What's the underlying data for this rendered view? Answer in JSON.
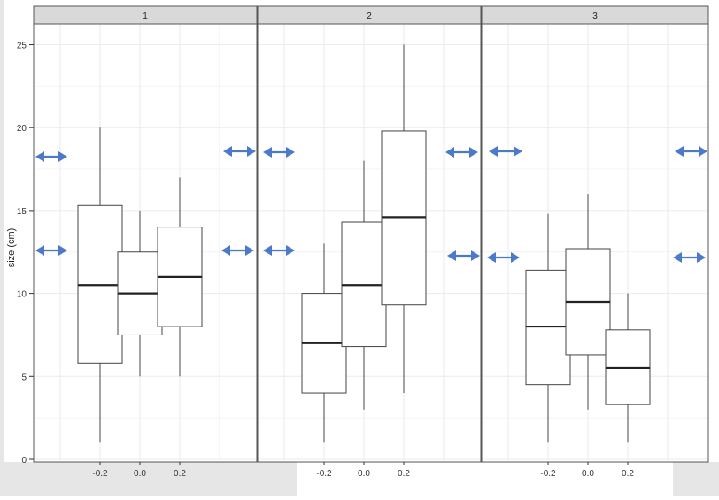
{
  "chart_data": {
    "type": "boxplot",
    "ylabel": "size (cm)",
    "ylim": [
      0,
      26
    ],
    "yticks": [
      0,
      5,
      10,
      15,
      20,
      25
    ],
    "xticks": [
      "-0.2",
      "0.0",
      "0.2"
    ],
    "xtick_values": [
      -0.2,
      0.0,
      0.2
    ],
    "grid": true,
    "facets": [
      {
        "label": "1",
        "boxes": [
          {
            "x": -0.2,
            "min": 1,
            "q1": 5.8,
            "median": 10.5,
            "q3": 15.3,
            "max": 20
          },
          {
            "x": 0.0,
            "min": 5,
            "q1": 7.5,
            "median": 10,
            "q3": 12.5,
            "max": 15
          },
          {
            "x": 0.2,
            "min": 5,
            "q1": 8,
            "median": 11,
            "q3": 14,
            "max": 17
          }
        ]
      },
      {
        "label": "2",
        "boxes": [
          {
            "x": -0.2,
            "min": 1,
            "q1": 4,
            "median": 7,
            "q3": 10,
            "max": 13
          },
          {
            "x": 0.0,
            "min": 3,
            "q1": 6.8,
            "median": 10.5,
            "q3": 14.3,
            "max": 18
          },
          {
            "x": 0.2,
            "min": 4,
            "q1": 9.3,
            "median": 14.6,
            "q3": 19.8,
            "max": 25
          }
        ]
      },
      {
        "label": "3",
        "boxes": [
          {
            "x": -0.2,
            "min": 1,
            "q1": 4.5,
            "median": 8,
            "q3": 11.4,
            "max": 14.8
          },
          {
            "x": 0.0,
            "min": 3,
            "q1": 6.3,
            "median": 9.5,
            "q3": 12.7,
            "max": 16
          },
          {
            "x": 0.2,
            "min": 1,
            "q1": 3.3,
            "median": 5.5,
            "q3": 7.8,
            "max": 10
          }
        ]
      }
    ],
    "arrow_color": "#4a7ac9",
    "arrow_icon": "double-headed-arrow-icon"
  }
}
